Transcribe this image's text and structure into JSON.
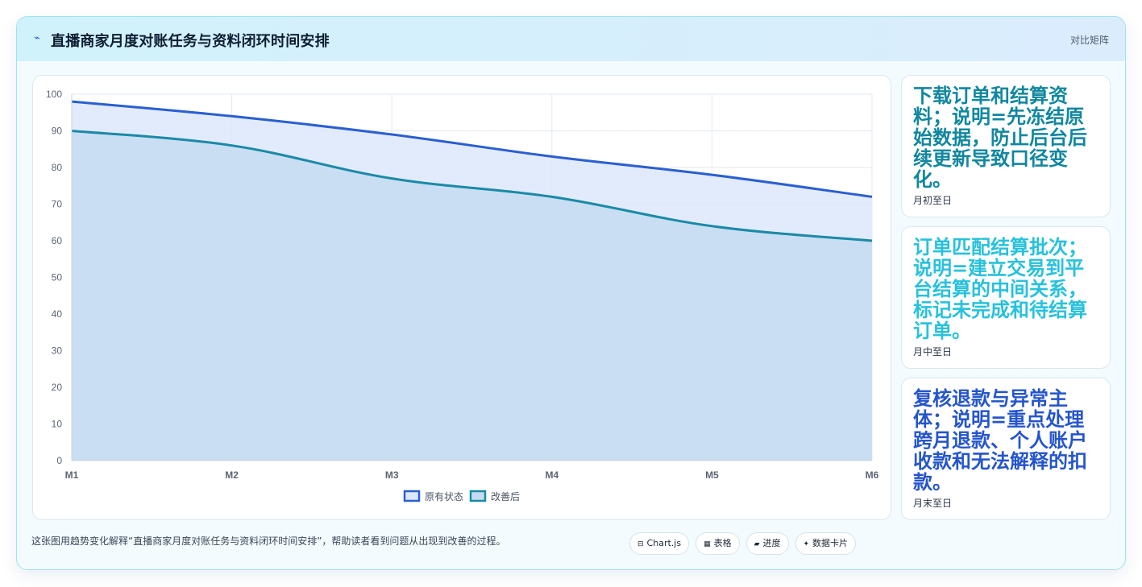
{
  "header": {
    "icon": "chart-trend-icon",
    "icon_glyph": "⌁",
    "title": "直播商家月度对账任务与资料闭环时间安排",
    "link": "对比矩阵"
  },
  "chart_data": {
    "type": "area",
    "categories": [
      "M1",
      "M2",
      "M3",
      "M4",
      "M5",
      "M6"
    ],
    "ylim": [
      0,
      100
    ],
    "yticks": [
      0,
      10,
      20,
      30,
      40,
      50,
      60,
      70,
      80,
      90,
      100
    ],
    "grid": true,
    "legend_position": "bottom",
    "series": [
      {
        "name": "原有状态",
        "values": [
          98,
          94,
          89,
          83,
          78,
          72
        ],
        "color": "#2a5fd1",
        "fill": "#dde8fb"
      },
      {
        "name": "改善后",
        "values": [
          90,
          86,
          77,
          72,
          64,
          60
        ],
        "color": "#1a8aa6",
        "fill": "#c4dcf1"
      }
    ]
  },
  "side_cards": [
    {
      "text": "下载订单和结算资料；说明=先冻结原始数据，防止后台后续更新导致口径变化。",
      "date": "月初至日",
      "color": "#10879f"
    },
    {
      "text": "订单匹配结算批次；说明=建立交易到平台结算的中间关系，标记未完成和待结算订单。",
      "date": "月中至日",
      "color": "#27c1dc"
    },
    {
      "text": "复核退款与异常主体；说明=重点处理跨月退款、个人账户收款和无法解释的扣款。",
      "date": "月末至日",
      "color": "#2455cc"
    }
  ],
  "footnote": "这张图用趋势变化解释“直播商家月度对账任务与资料闭环时间安排”，帮助读者看到问题从出现到改善的过程。",
  "chips": [
    {
      "icon": "chart-icon",
      "glyph": "⊟",
      "label": "Chart.js"
    },
    {
      "icon": "table-icon",
      "glyph": "▦",
      "label": "表格"
    },
    {
      "icon": "progress-icon",
      "glyph": "▰",
      "label": "进度"
    },
    {
      "icon": "data-card-icon",
      "glyph": "✦",
      "label": "数据卡片"
    }
  ]
}
